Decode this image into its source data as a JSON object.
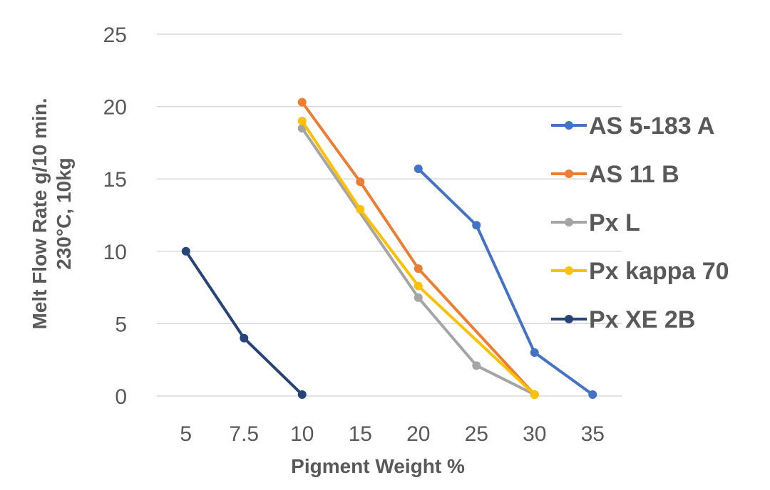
{
  "chart_data": {
    "type": "line",
    "title": "",
    "xlabel": "Pigment Weight %",
    "ylabel_line1": "Melt Flow Rate g/10 min.",
    "ylabel_line2": "230°C, 10kg",
    "categories": [
      "5",
      "7.5",
      "10",
      "15",
      "20",
      "25",
      "30",
      "35"
    ],
    "ylim": [
      0,
      25
    ],
    "yticks": [
      0,
      5,
      10,
      15,
      20,
      25
    ],
    "grid": true,
    "legend_position": "right",
    "series": [
      {
        "name": "AS 5-183 A",
        "color": "#4472C4",
        "values": [
          null,
          null,
          null,
          null,
          15.7,
          11.8,
          3.0,
          0.1
        ]
      },
      {
        "name": "AS 11 B",
        "color": "#ED7D31",
        "values": [
          null,
          null,
          20.3,
          14.8,
          8.8,
          null,
          0.1,
          null
        ]
      },
      {
        "name": "Px L",
        "color": "#A5A5A5",
        "values": [
          null,
          null,
          18.5,
          null,
          6.8,
          2.1,
          0.1,
          null
        ]
      },
      {
        "name": "Px kappa 70",
        "color": "#FFC000",
        "values": [
          null,
          null,
          19.0,
          12.9,
          7.6,
          null,
          0.1,
          null
        ]
      },
      {
        "name": "Px XE 2B",
        "color": "#264478",
        "values": [
          10.0,
          4.0,
          0.1,
          null,
          null,
          null,
          null,
          null
        ]
      }
    ]
  }
}
